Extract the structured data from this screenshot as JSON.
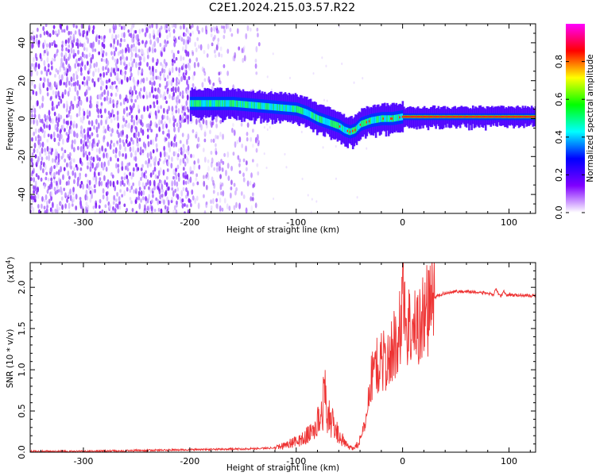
{
  "title": "C2E1.2024.215.03.57.R22",
  "chart_data": [
    {
      "type": "heatmap",
      "xlabel": "Height of straight line (km)",
      "ylabel": "Frequency (Hz)",
      "xlim": [
        -350,
        125
      ],
      "ylim": [
        -50,
        50
      ],
      "xticks": [
        -300,
        -200,
        -100,
        0,
        100
      ],
      "yticks": [
        -40,
        -20,
        0,
        20,
        40
      ],
      "grid": false,
      "colorbar": {
        "label": "Normalized spectral amplitude",
        "range": [
          0,
          1
        ],
        "ticks": [
          "0.0",
          "0.2",
          "0.4",
          "0.6",
          "0.8"
        ],
        "colors": [
          "#ffffff",
          "#8000ff",
          "#0000ff",
          "#00ffff",
          "#00ff00",
          "#ffff00",
          "#ff0000",
          "#ff00ff"
        ]
      },
      "ridge": {
        "x": [
          -200,
          -180,
          -160,
          -140,
          -120,
          -100,
          -90,
          -80,
          -70,
          -60,
          -55,
          -50,
          -45,
          -40,
          -30,
          -20,
          -10,
          0,
          50,
          125
        ],
        "y": [
          8,
          8,
          8,
          7,
          6,
          5,
          3,
          0,
          -2,
          -4,
          -6,
          -7,
          -6,
          -3,
          -1,
          0,
          0,
          1,
          1,
          1
        ]
      }
    },
    {
      "type": "line",
      "xlabel": "Height of straight line (km)",
      "ylabel": "SNR (10 * v/v)",
      "yscale_label": "(x10",
      "yscale_exp": "4",
      "yscale_close": ")",
      "xlim": [
        -350,
        125
      ],
      "ylim": [
        0,
        2.3
      ],
      "xticks": [
        -300,
        -200,
        -100,
        0,
        100
      ],
      "yticks": [
        "0.0",
        "0.5",
        "1.0",
        "1.5",
        "2.0"
      ],
      "grid": false,
      "color": "#ee3333",
      "series": [
        {
          "x": [
            -350,
            -300,
            -250,
            -200,
            -150,
            -125,
            -115,
            -105,
            -95,
            -85,
            -80,
            -76,
            -73,
            -70,
            -66,
            -62,
            -58,
            -54,
            -50,
            -46,
            -42,
            -38,
            -34,
            -30,
            -26,
            -22,
            -18,
            -14,
            -10,
            -6,
            -2,
            0,
            2,
            6,
            10,
            15,
            20,
            25,
            30,
            40,
            50,
            60,
            70,
            80,
            85,
            88,
            92,
            95,
            98,
            100,
            105,
            110,
            115,
            125
          ],
          "y": [
            0.01,
            0.01,
            0.02,
            0.03,
            0.04,
            0.05,
            0.07,
            0.11,
            0.15,
            0.25,
            0.35,
            0.5,
            0.7,
            0.45,
            0.35,
            0.25,
            0.18,
            0.1,
            0.06,
            0.05,
            0.1,
            0.2,
            0.45,
            0.85,
            1.1,
            1.0,
            1.15,
            1.05,
            1.25,
            1.35,
            1.5,
            2.25,
            1.6,
            1.55,
            1.45,
            1.55,
            1.65,
            1.8,
            1.88,
            1.93,
            1.95,
            1.95,
            1.94,
            1.93,
            1.9,
            1.98,
            1.88,
            1.95,
            1.9,
            1.92,
            1.9,
            1.91,
            1.9,
            1.9
          ]
        }
      ]
    }
  ]
}
